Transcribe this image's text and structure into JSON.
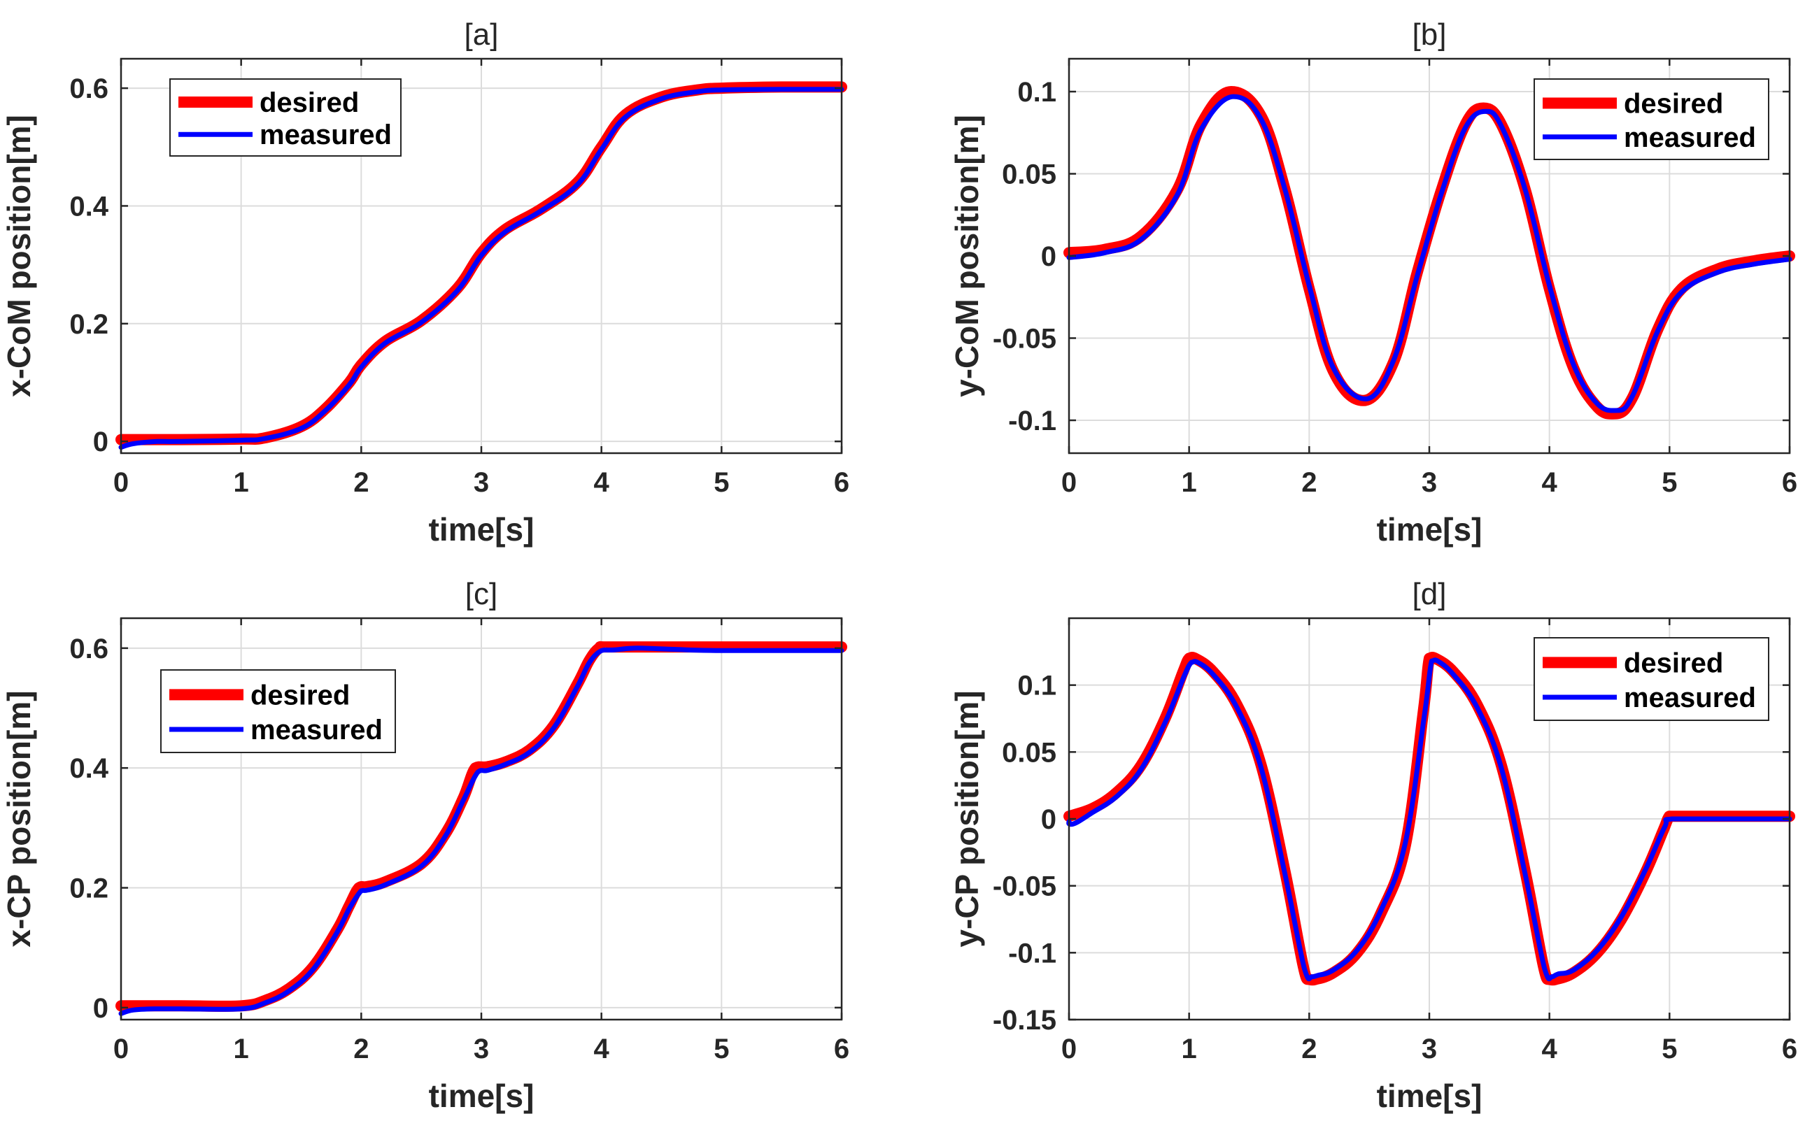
{
  "colors": {
    "desired": "#ff0000",
    "measured": "#0000ff",
    "axis": "#262626",
    "grid": "#dcdcdc"
  },
  "chart_data": [
    {
      "id": "a",
      "type": "line",
      "title": "[a]",
      "xlabel": "time[s]",
      "ylabel": "x-CoM position[m]",
      "xlim": [
        0,
        6
      ],
      "ylim": [
        -0.02,
        0.65
      ],
      "xticks": [
        0,
        1,
        2,
        3,
        4,
        5,
        6
      ],
      "yticks": [
        0,
        0.2,
        0.4,
        0.6
      ],
      "xtick_labels": [
        "0",
        "1",
        "2",
        "3",
        "4",
        "5",
        "6"
      ],
      "ytick_labels": [
        "0",
        "0.2",
        "0.4",
        "0.6"
      ],
      "grid": true,
      "legend_location": "top-left",
      "series": [
        {
          "name": "desired",
          "x": [
            0,
            0.5,
            1,
            1.2,
            1.5,
            1.7,
            1.9,
            2.0,
            2.2,
            2.5,
            2.8,
            3.0,
            3.2,
            3.5,
            3.8,
            4.0,
            4.2,
            4.5,
            4.8,
            5.0,
            5.5,
            6
          ],
          "y": [
            0.003,
            0.003,
            0.004,
            0.006,
            0.025,
            0.055,
            0.1,
            0.13,
            0.17,
            0.205,
            0.26,
            0.32,
            0.36,
            0.395,
            0.44,
            0.5,
            0.555,
            0.585,
            0.597,
            0.6,
            0.602,
            0.602
          ]
        },
        {
          "name": "measured",
          "x": [
            0,
            0.1,
            0.3,
            0.5,
            1,
            1.2,
            1.5,
            1.7,
            1.9,
            2.0,
            2.2,
            2.5,
            2.8,
            3.0,
            3.2,
            3.5,
            3.8,
            4.0,
            4.2,
            4.5,
            4.8,
            5.0,
            5.5,
            6
          ],
          "y": [
            -0.01,
            -0.004,
            0.0,
            0.0,
            0.002,
            0.005,
            0.022,
            0.052,
            0.096,
            0.126,
            0.167,
            0.202,
            0.256,
            0.316,
            0.356,
            0.392,
            0.436,
            0.496,
            0.551,
            0.582,
            0.594,
            0.597,
            0.598,
            0.598
          ]
        }
      ]
    },
    {
      "id": "b",
      "type": "line",
      "title": "[b]",
      "xlabel": "time[s]",
      "ylabel": "y-CoM position[m]",
      "xlim": [
        0,
        6
      ],
      "ylim": [
        -0.12,
        0.12
      ],
      "xticks": [
        0,
        1,
        2,
        3,
        4,
        5,
        6
      ],
      "yticks": [
        -0.1,
        -0.05,
        0,
        0.05,
        0.1
      ],
      "xtick_labels": [
        "0",
        "1",
        "2",
        "3",
        "4",
        "5",
        "6"
      ],
      "ytick_labels": [
        "-0.1",
        "-0.05",
        "0",
        "0.05",
        "0.1"
      ],
      "grid": true,
      "legend_location": "top-right",
      "series": [
        {
          "name": "desired",
          "x": [
            0,
            0.3,
            0.6,
            0.9,
            1.1,
            1.35,
            1.6,
            1.8,
            2.0,
            2.2,
            2.45,
            2.7,
            2.9,
            3.1,
            3.3,
            3.45,
            3.6,
            3.8,
            4.0,
            4.2,
            4.4,
            4.55,
            4.7,
            4.9,
            5.1,
            5.4,
            5.7,
            6
          ],
          "y": [
            0.002,
            0.004,
            0.012,
            0.04,
            0.08,
            0.1,
            0.085,
            0.04,
            -0.02,
            -0.07,
            -0.088,
            -0.065,
            -0.01,
            0.04,
            0.08,
            0.09,
            0.08,
            0.04,
            -0.02,
            -0.068,
            -0.092,
            -0.096,
            -0.085,
            -0.045,
            -0.02,
            -0.008,
            -0.003,
            0.0
          ]
        },
        {
          "name": "measured",
          "x": [
            0,
            0.3,
            0.6,
            0.9,
            1.1,
            1.37,
            1.6,
            1.8,
            2.0,
            2.2,
            2.47,
            2.7,
            2.9,
            3.1,
            3.3,
            3.47,
            3.6,
            3.8,
            4.0,
            4.2,
            4.4,
            4.57,
            4.7,
            4.9,
            5.1,
            5.4,
            5.7,
            6
          ],
          "y": [
            -0.001,
            0.002,
            0.01,
            0.037,
            0.077,
            0.097,
            0.083,
            0.04,
            -0.018,
            -0.068,
            -0.087,
            -0.064,
            -0.012,
            0.038,
            0.078,
            0.088,
            0.079,
            0.04,
            -0.018,
            -0.066,
            -0.09,
            -0.094,
            -0.084,
            -0.046,
            -0.022,
            -0.01,
            -0.005,
            -0.002
          ]
        }
      ]
    },
    {
      "id": "c",
      "type": "line",
      "title": "[c]",
      "xlabel": "time[s]",
      "ylabel": "x-CP position[m]",
      "xlim": [
        0,
        6
      ],
      "ylim": [
        -0.02,
        0.65
      ],
      "xticks": [
        0,
        1,
        2,
        3,
        4,
        5,
        6
      ],
      "yticks": [
        0,
        0.2,
        0.4,
        0.6
      ],
      "xtick_labels": [
        "0",
        "1",
        "2",
        "3",
        "4",
        "5",
        "6"
      ],
      "ytick_labels": [
        "0",
        "0.2",
        "0.4",
        "0.6"
      ],
      "grid": true,
      "legend_location": "top-left",
      "series": [
        {
          "name": "desired",
          "x": [
            0,
            0.5,
            1,
            1.2,
            1.4,
            1.6,
            1.8,
            1.9,
            1.98,
            2.05,
            2.2,
            2.5,
            2.7,
            2.85,
            2.95,
            3.05,
            3.2,
            3.4,
            3.6,
            3.8,
            3.9,
            3.98,
            4.05,
            4.5,
            5,
            6
          ],
          "y": [
            0.003,
            0.003,
            0.003,
            0.012,
            0.032,
            0.068,
            0.13,
            0.17,
            0.2,
            0.202,
            0.21,
            0.24,
            0.29,
            0.35,
            0.4,
            0.402,
            0.41,
            0.43,
            0.47,
            0.54,
            0.58,
            0.6,
            0.602,
            0.602,
            0.602,
            0.602
          ]
        },
        {
          "name": "measured",
          "x": [
            0,
            0.1,
            0.3,
            0.5,
            1,
            1.2,
            1.4,
            1.6,
            1.8,
            1.9,
            2.0,
            2.05,
            2.2,
            2.5,
            2.7,
            2.85,
            2.97,
            3.05,
            3.2,
            3.4,
            3.6,
            3.8,
            3.9,
            4.0,
            4.1,
            4.3,
            4.6,
            5,
            6
          ],
          "y": [
            -0.01,
            -0.004,
            -0.002,
            -0.002,
            -0.002,
            0.008,
            0.028,
            0.064,
            0.126,
            0.165,
            0.195,
            0.196,
            0.205,
            0.236,
            0.286,
            0.346,
            0.393,
            0.396,
            0.406,
            0.426,
            0.466,
            0.536,
            0.576,
            0.596,
            0.597,
            0.6,
            0.598,
            0.596,
            0.596
          ]
        }
      ]
    },
    {
      "id": "d",
      "type": "line",
      "title": "[d]",
      "xlabel": "time[s]",
      "ylabel": "y-CP position[m]",
      "xlim": [
        0,
        6
      ],
      "ylim": [
        -0.15,
        0.15
      ],
      "xticks": [
        0,
        1,
        2,
        3,
        4,
        5,
        6
      ],
      "yticks": [
        -0.15,
        -0.1,
        -0.05,
        0,
        0.05,
        0.1
      ],
      "xtick_labels": [
        "0",
        "1",
        "2",
        "3",
        "4",
        "5",
        "6"
      ],
      "ytick_labels": [
        "-0.15",
        "-0.1",
        "-0.05",
        "0",
        "0.05",
        "0.1"
      ],
      "grid": true,
      "legend_location": "top-right",
      "series": [
        {
          "name": "desired",
          "x": [
            0,
            0.2,
            0.4,
            0.6,
            0.8,
            0.95,
            1.0,
            1.05,
            1.2,
            1.4,
            1.6,
            1.8,
            1.95,
            2.0,
            2.05,
            2.2,
            2.4,
            2.6,
            2.8,
            2.95,
            3.0,
            3.05,
            3.2,
            3.4,
            3.6,
            3.8,
            3.95,
            4.0,
            4.05,
            4.2,
            4.4,
            4.6,
            4.8,
            4.95,
            5.0,
            5.05,
            5.5,
            6
          ],
          "y": [
            0.002,
            0.008,
            0.02,
            0.04,
            0.075,
            0.11,
            0.12,
            0.12,
            0.11,
            0.085,
            0.04,
            -0.04,
            -0.11,
            -0.12,
            -0.12,
            -0.115,
            -0.1,
            -0.07,
            -0.02,
            0.08,
            0.12,
            0.12,
            0.11,
            0.085,
            0.04,
            -0.04,
            -0.11,
            -0.12,
            -0.12,
            -0.115,
            -0.1,
            -0.075,
            -0.04,
            -0.008,
            0.002,
            0.002,
            0.002,
            0.002
          ]
        },
        {
          "name": "measured",
          "x": [
            0,
            0.02,
            0.2,
            0.4,
            0.6,
            0.8,
            0.96,
            1.02,
            1.07,
            1.2,
            1.4,
            1.6,
            1.8,
            1.96,
            2.02,
            2.07,
            2.2,
            2.4,
            2.6,
            2.8,
            2.96,
            3.02,
            3.07,
            3.2,
            3.4,
            3.6,
            3.8,
            3.96,
            4.02,
            4.07,
            4.2,
            4.4,
            4.6,
            4.8,
            4.96,
            5.02,
            5.5,
            6
          ],
          "y": [
            -0.002,
            -0.004,
            0.005,
            0.017,
            0.037,
            0.072,
            0.107,
            0.117,
            0.117,
            0.108,
            0.083,
            0.038,
            -0.042,
            -0.112,
            -0.118,
            -0.117,
            -0.113,
            -0.098,
            -0.068,
            -0.018,
            0.078,
            0.118,
            0.118,
            0.108,
            0.083,
            0.038,
            -0.042,
            -0.112,
            -0.118,
            -0.116,
            -0.113,
            -0.098,
            -0.073,
            -0.038,
            -0.006,
            0.0,
            0.0,
            0.0
          ]
        }
      ]
    }
  ]
}
